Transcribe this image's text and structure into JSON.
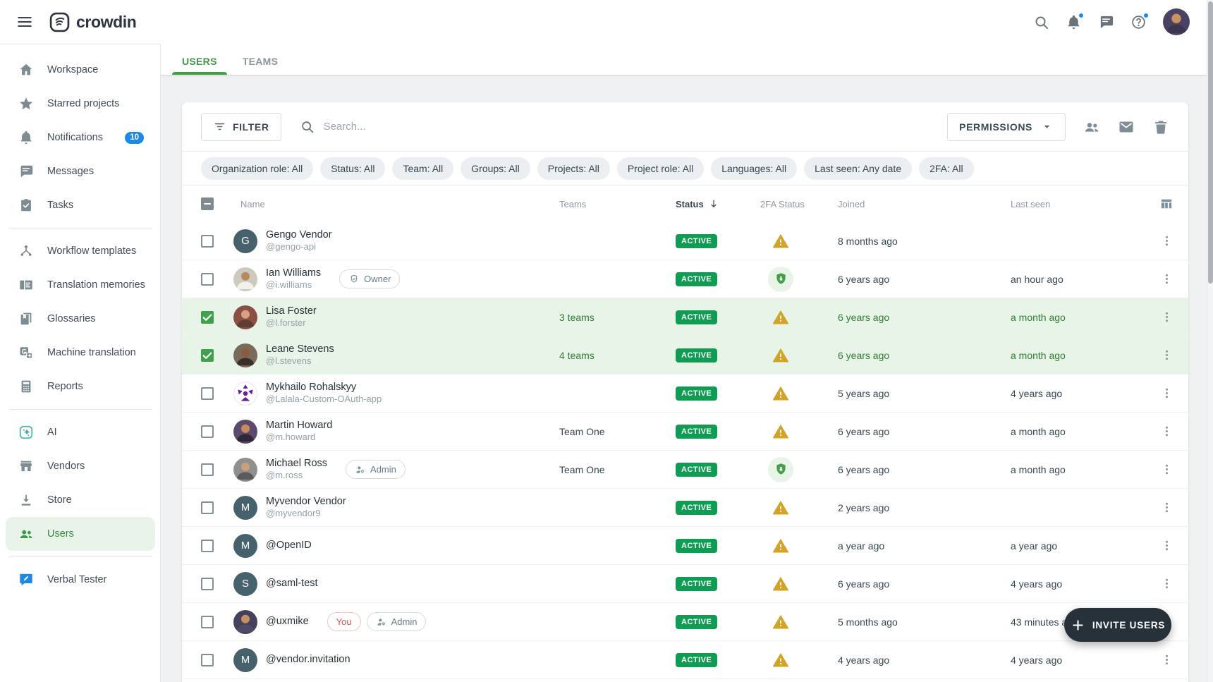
{
  "topbar": {
    "logo_text": "crowdin"
  },
  "sidebar": {
    "sections": [
      {
        "items": [
          {
            "label": "Workspace",
            "icon": "home"
          },
          {
            "label": "Starred projects",
            "icon": "star"
          },
          {
            "label": "Notifications",
            "icon": "bell",
            "badge": "10"
          },
          {
            "label": "Messages",
            "icon": "message"
          },
          {
            "label": "Tasks",
            "icon": "tasks"
          }
        ]
      },
      {
        "items": [
          {
            "label": "Workflow templates",
            "icon": "workflow"
          },
          {
            "label": "Translation memories",
            "icon": "tm"
          },
          {
            "label": "Glossaries",
            "icon": "glossary"
          },
          {
            "label": "Machine translation",
            "icon": "mt"
          },
          {
            "label": "Reports",
            "icon": "reports"
          }
        ]
      },
      {
        "items": [
          {
            "label": "AI",
            "icon": "ai"
          },
          {
            "label": "Vendors",
            "icon": "vendors"
          },
          {
            "label": "Store",
            "icon": "store"
          },
          {
            "label": "Users",
            "icon": "users",
            "active": true
          }
        ]
      },
      {
        "items": [
          {
            "label": "Verbal Tester",
            "icon": "verbal"
          }
        ]
      }
    ]
  },
  "header": {
    "title": "Users",
    "tabs": [
      {
        "label": "USERS",
        "active": true
      },
      {
        "label": "TEAMS",
        "active": false
      }
    ]
  },
  "toolbar": {
    "filter_label": "FILTER",
    "search_placeholder": "Search...",
    "permissions_label": "PERMISSIONS"
  },
  "filters": [
    "Organization role: All",
    "Status: All",
    "Team: All",
    "Groups: All",
    "Projects: All",
    "Project role: All",
    "Languages: All",
    "Last seen: Any date",
    "2FA: All"
  ],
  "table": {
    "columns": {
      "name": "Name",
      "teams": "Teams",
      "status": "Status",
      "tfa": "2FA Status",
      "joined": "Joined",
      "last_seen": "Last seen"
    },
    "sorted_column": "Status",
    "rows": [
      {
        "name": "Gengo Vendor",
        "username": "@gengo-api",
        "avatar": {
          "kind": "letter",
          "letter": "G",
          "bg": "#47616c"
        },
        "badges": [],
        "teams": "",
        "teams_link": false,
        "status": "ACTIVE",
        "tfa": "warning",
        "joined": "8 months ago",
        "last_seen": "",
        "checked": false,
        "highlighted": false
      },
      {
        "name": "Ian Williams",
        "username": "@i.williams",
        "avatar": {
          "kind": "person",
          "bg": "#cfc9bd",
          "skin": "#b98a5e",
          "shirt": "#f2f0ea"
        },
        "badges": [
          {
            "label": "Owner",
            "icon": "owner-shield",
            "style": "default"
          }
        ],
        "teams": "",
        "teams_link": false,
        "status": "ACTIVE",
        "tfa": "shield",
        "joined": "6 years ago",
        "last_seen": "an hour ago",
        "checked": false,
        "highlighted": false
      },
      {
        "name": "Lisa Foster",
        "username": "@l.forster",
        "avatar": {
          "kind": "person",
          "bg": "#8c4f43",
          "skin": "#d9a184",
          "shirt": "#5d3d34"
        },
        "badges": [],
        "teams": "3 teams",
        "teams_link": true,
        "status": "ACTIVE",
        "tfa": "warning",
        "joined": "6 years ago",
        "last_seen": "a month ago",
        "checked": true,
        "highlighted": true
      },
      {
        "name": "Leane Stevens",
        "username": "@l.stevens",
        "avatar": {
          "kind": "person",
          "bg": "#7a6a5c",
          "skin": "#8a5c3e",
          "shirt": "#3c2f28"
        },
        "badges": [],
        "teams": "4 teams",
        "teams_link": true,
        "status": "ACTIVE",
        "tfa": "warning",
        "joined": "6 years ago",
        "last_seen": "a month ago",
        "checked": true,
        "highlighted": true
      },
      {
        "name": "Mykhailo Rohalskyy",
        "username": "@Lalala-Custom-OAuth-app",
        "avatar": {
          "kind": "logo",
          "bg": "#ffffff",
          "fg": "#6a1b9a"
        },
        "badges": [],
        "teams": "",
        "teams_link": false,
        "status": "ACTIVE",
        "tfa": "warning",
        "joined": "5 years ago",
        "last_seen": "4 years ago",
        "checked": false,
        "highlighted": false
      },
      {
        "name": "Martin Howard",
        "username": "@m.howard",
        "avatar": {
          "kind": "person",
          "bg": "#5b4a6b",
          "skin": "#c98a5e",
          "shirt": "#2f2838"
        },
        "badges": [],
        "teams": "Team One",
        "teams_link": false,
        "status": "ACTIVE",
        "tfa": "warning",
        "joined": "6 years ago",
        "last_seen": "a month ago",
        "checked": false,
        "highlighted": false
      },
      {
        "name": "Michael Ross",
        "username": "@m.ross",
        "avatar": {
          "kind": "person",
          "bg": "#8f8f8f",
          "skin": "#caa07a",
          "shirt": "#5a5a5a"
        },
        "badges": [
          {
            "label": "Admin",
            "icon": "admin",
            "style": "default"
          }
        ],
        "teams": "Team One",
        "teams_link": false,
        "status": "ACTIVE",
        "tfa": "shield",
        "joined": "6 years ago",
        "last_seen": "a month ago",
        "checked": false,
        "highlighted": false
      },
      {
        "name": "Myvendor Vendor",
        "username": "@myvendor9",
        "avatar": {
          "kind": "letter",
          "letter": "M",
          "bg": "#47616c"
        },
        "badges": [],
        "teams": "",
        "teams_link": false,
        "status": "ACTIVE",
        "tfa": "warning",
        "joined": "2 years ago",
        "last_seen": "",
        "checked": false,
        "highlighted": false
      },
      {
        "name": "@OpenID",
        "username": "",
        "avatar": {
          "kind": "letter",
          "letter": "M",
          "bg": "#47616c"
        },
        "badges": [],
        "teams": "",
        "teams_link": false,
        "status": "ACTIVE",
        "tfa": "warning",
        "joined": "a year ago",
        "last_seen": "a year ago",
        "checked": false,
        "highlighted": false
      },
      {
        "name": "@saml-test",
        "username": "",
        "avatar": {
          "kind": "letter",
          "letter": "S",
          "bg": "#47616c"
        },
        "badges": [],
        "teams": "",
        "teams_link": false,
        "status": "ACTIVE",
        "tfa": "warning",
        "joined": "6 years ago",
        "last_seen": "4 years ago",
        "checked": false,
        "highlighted": false
      },
      {
        "name": "@uxmike",
        "username": "",
        "avatar": {
          "kind": "person",
          "bg": "#44405e",
          "skin": "#c98e62",
          "shirt": "#4f4a68"
        },
        "badges": [
          {
            "label": "You",
            "icon": "",
            "style": "danger"
          },
          {
            "label": "Admin",
            "icon": "admin",
            "style": "default"
          }
        ],
        "teams": "",
        "teams_link": false,
        "status": "ACTIVE",
        "tfa": "warning",
        "joined": "5 months ago",
        "last_seen": "43 minutes ago",
        "checked": false,
        "highlighted": false
      },
      {
        "name": "@vendor.invitation",
        "username": "",
        "avatar": {
          "kind": "letter",
          "letter": "M",
          "bg": "#47616c"
        },
        "badges": [],
        "teams": "",
        "teams_link": false,
        "status": "ACTIVE",
        "tfa": "warning",
        "joined": "4 years ago",
        "last_seen": "4 years ago",
        "checked": false,
        "highlighted": false
      }
    ]
  },
  "invite_button": {
    "label": "INVITE USERS"
  },
  "colors": {
    "accent_green": "#43a047",
    "active_badge": "#0f9d53",
    "selected_row": "#e9f4e9",
    "warning_amber": "#d2a326",
    "info_blue": "#1e88e5",
    "invite_bg": "#26313a",
    "danger_red": "#e05252"
  }
}
